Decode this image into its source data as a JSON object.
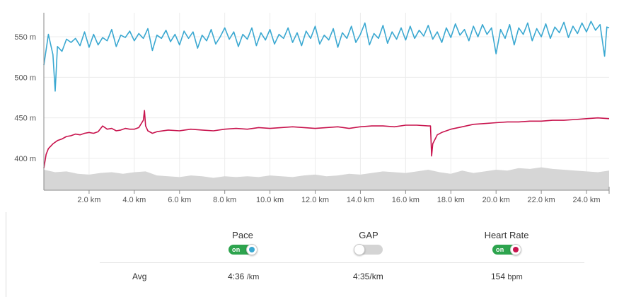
{
  "colors": {
    "pace": "#3aa8d1",
    "heart_rate": "#c8134d",
    "elevation": "#d6d6d6",
    "toggle_on": "#2da44e",
    "toggle_off": "#d4d4d4"
  },
  "chart_data": {
    "type": "line",
    "x_unit": "km",
    "x_ticks": [
      "2.0 km",
      "4.0 km",
      "6.0 km",
      "8.0 km",
      "10.0 km",
      "12.0 km",
      "14.0 km",
      "16.0 km",
      "18.0 km",
      "20.0 km",
      "22.0 km",
      "24.0 km"
    ],
    "y_ticks": [
      "550 m",
      "500 m",
      "450 m",
      "400 m"
    ],
    "ylim": [
      370,
      590
    ],
    "xlim": [
      0,
      25.0
    ],
    "grid": true,
    "series": [
      {
        "name": "Pace",
        "color": "#3aa8d1",
        "x": [
          0,
          0.2,
          0.4,
          0.5,
          0.6,
          0.8,
          1.0,
          1.2,
          1.4,
          1.6,
          1.8,
          2.0,
          2.2,
          2.4,
          2.6,
          2.8,
          3.0,
          3.2,
          3.4,
          3.6,
          3.8,
          4.0,
          4.2,
          4.4,
          4.6,
          4.8,
          5.0,
          5.2,
          5.4,
          5.6,
          5.8,
          6.0,
          6.2,
          6.4,
          6.6,
          6.8,
          7.0,
          7.2,
          7.4,
          7.6,
          7.8,
          8.0,
          8.2,
          8.4,
          8.6,
          8.8,
          9.0,
          9.2,
          9.4,
          9.6,
          9.8,
          10.0,
          10.2,
          10.4,
          10.6,
          10.8,
          11.0,
          11.2,
          11.4,
          11.6,
          11.8,
          12.0,
          12.2,
          12.4,
          12.6,
          12.8,
          13.0,
          13.2,
          13.4,
          13.6,
          13.8,
          14.0,
          14.2,
          14.4,
          14.6,
          14.8,
          15.0,
          15.2,
          15.4,
          15.6,
          15.8,
          16.0,
          16.2,
          16.4,
          16.6,
          16.8,
          17.0,
          17.2,
          17.4,
          17.6,
          17.8,
          18.0,
          18.2,
          18.4,
          18.6,
          18.8,
          19.0,
          19.2,
          19.4,
          19.6,
          19.8,
          20.0,
          20.2,
          20.4,
          20.6,
          20.8,
          21.0,
          21.2,
          21.4,
          21.6,
          21.8,
          22.0,
          22.2,
          22.4,
          22.6,
          22.8,
          23.0,
          23.2,
          23.4,
          23.6,
          23.8,
          24.0,
          24.2,
          24.4,
          24.6,
          24.8,
          24.9,
          25.0
        ],
        "values": [
          515,
          553,
          528,
          483,
          538,
          532,
          547,
          543,
          548,
          539,
          556,
          537,
          553,
          540,
          549,
          545,
          559,
          538,
          552,
          549,
          557,
          545,
          554,
          548,
          560,
          533,
          552,
          548,
          558,
          544,
          553,
          540,
          557,
          548,
          556,
          536,
          552,
          545,
          559,
          541,
          550,
          561,
          547,
          556,
          538,
          553,
          547,
          561,
          539,
          555,
          546,
          559,
          541,
          553,
          548,
          561,
          543,
          555,
          539,
          557,
          548,
          563,
          541,
          552,
          546,
          560,
          537,
          555,
          548,
          563,
          543,
          553,
          567,
          540,
          554,
          548,
          564,
          542,
          556,
          547,
          561,
          546,
          563,
          548,
          558,
          551,
          564,
          547,
          556,
          543,
          561,
          549,
          566,
          552,
          559,
          545,
          563,
          550,
          565,
          553,
          561,
          529,
          559,
          548,
          565,
          540,
          561,
          553,
          567,
          545,
          560,
          550,
          566,
          548,
          562,
          555,
          568,
          549,
          563,
          554,
          567,
          556,
          569,
          558,
          565,
          526,
          562,
          561
        ]
      },
      {
        "name": "Heart Rate",
        "color": "#c8134d",
        "x": [
          0,
          0.1,
          0.2,
          0.4,
          0.6,
          0.8,
          1.0,
          1.2,
          1.4,
          1.6,
          1.8,
          2.0,
          2.2,
          2.4,
          2.6,
          2.8,
          3.0,
          3.2,
          3.4,
          3.6,
          3.8,
          4.0,
          4.2,
          4.4,
          4.45,
          4.5,
          4.6,
          4.8,
          5.0,
          5.5,
          6.0,
          6.5,
          7.0,
          7.5,
          8.0,
          8.5,
          9.0,
          9.5,
          10.0,
          10.5,
          11.0,
          11.5,
          12.0,
          12.5,
          13.0,
          13.5,
          14.0,
          14.5,
          15.0,
          15.5,
          16.0,
          16.5,
          17.0,
          17.1,
          17.15,
          17.2,
          17.4,
          17.6,
          17.8,
          18.0,
          18.5,
          19.0,
          19.5,
          20.0,
          20.5,
          21.0,
          21.5,
          22.0,
          22.5,
          23.0,
          23.5,
          24.0,
          24.5,
          25.0
        ],
        "values": [
          388,
          405,
          412,
          418,
          422,
          424,
          427,
          428,
          430,
          429,
          431,
          432,
          431,
          433,
          440,
          436,
          437,
          434,
          435,
          437,
          436,
          436,
          438,
          447,
          459,
          440,
          434,
          431,
          433,
          435,
          434,
          436,
          435,
          434,
          436,
          437,
          436,
          438,
          437,
          438,
          439,
          438,
          437,
          438,
          439,
          437,
          439,
          440,
          440,
          439,
          441,
          441,
          440,
          440,
          403,
          418,
          429,
          432,
          434,
          436,
          439,
          442,
          443,
          444,
          445,
          445,
          446,
          446,
          447,
          447,
          448,
          449,
          450,
          449
        ]
      },
      {
        "name": "Elevation",
        "color": "#d6d6d6",
        "x": [
          0,
          0.5,
          1.0,
          1.5,
          2.0,
          2.5,
          3.0,
          3.5,
          4.0,
          4.5,
          5.0,
          5.5,
          6.0,
          6.5,
          7.0,
          7.5,
          8.0,
          8.5,
          9.0,
          9.5,
          10.0,
          10.5,
          11.0,
          11.5,
          12.0,
          12.5,
          13.0,
          13.5,
          14.0,
          14.5,
          15.0,
          15.5,
          16.0,
          16.5,
          17.0,
          17.5,
          18.0,
          18.5,
          19.0,
          19.5,
          20.0,
          20.5,
          21.0,
          21.5,
          22.0,
          22.5,
          23.0,
          23.5,
          24.0,
          24.5,
          25.0
        ],
        "values": [
          386,
          383,
          384,
          381,
          380,
          382,
          383,
          381,
          383,
          384,
          379,
          378,
          377,
          379,
          378,
          376,
          378,
          377,
          378,
          377,
          379,
          378,
          377,
          379,
          380,
          378,
          379,
          381,
          380,
          382,
          384,
          383,
          382,
          384,
          386,
          383,
          381,
          385,
          382,
          384,
          386,
          385,
          388,
          387,
          389,
          387,
          386,
          385,
          384,
          383,
          385
        ]
      }
    ]
  },
  "toggles": [
    {
      "label": "Pace",
      "state": "on",
      "on_text": "on",
      "dot_color": "#3aa8d1"
    },
    {
      "label": "GAP",
      "state": "off",
      "on_text": "",
      "dot_color": ""
    },
    {
      "label": "Heart Rate",
      "state": "on",
      "on_text": "on",
      "dot_color": "#c8134d"
    }
  ],
  "avg_row": {
    "label": "Avg",
    "pace_value": "4:36",
    "pace_unit": "/km",
    "gap_value": "4:35/km",
    "hr_value": "154",
    "hr_unit": "bpm"
  }
}
